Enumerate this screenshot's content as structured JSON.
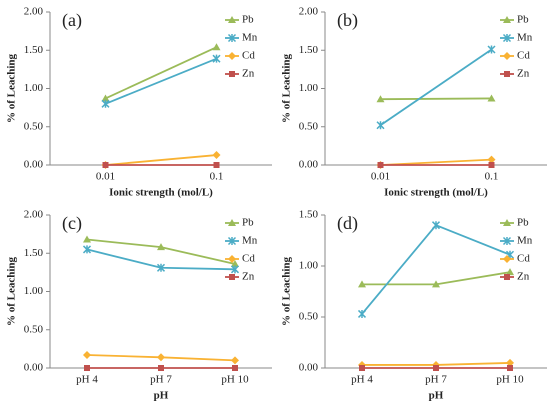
{
  "chart_data": [
    {
      "type": "line",
      "label": "(a)",
      "xlabel": "Ionic strength (mol/L)",
      "ylabel": "% of Leaching",
      "categories": [
        "0.01",
        "0.1"
      ],
      "series": [
        {
          "name": "Pb",
          "color": "#9bbb59",
          "marker": "triangle",
          "values": [
            0.87,
            1.54
          ]
        },
        {
          "name": "Mn",
          "color": "#4bacc6",
          "marker": "star",
          "values": [
            0.8,
            1.39
          ]
        },
        {
          "name": "Cd",
          "color": "#f9b233",
          "marker": "diamond",
          "values": [
            0.0,
            0.13
          ]
        },
        {
          "name": "Zn",
          "color": "#c0504d",
          "marker": "square",
          "values": [
            0.0,
            0.0
          ]
        }
      ],
      "ylim": [
        0,
        2
      ],
      "yticks": [
        {
          "value": 0,
          "label": "0.00"
        },
        {
          "value": 0.5,
          "label": "0.50"
        },
        {
          "value": 1,
          "label": "1.00"
        },
        {
          "value": 1.5,
          "label": "1.50"
        },
        {
          "value": 2,
          "label": "2.00"
        }
      ]
    },
    {
      "type": "line",
      "label": "(b)",
      "xlabel": "Ionic strength (mol/L)",
      "ylabel": "% of Leaching",
      "categories": [
        "0.01",
        "0.1"
      ],
      "series": [
        {
          "name": "Pb",
          "color": "#9bbb59",
          "marker": "triangle",
          "values": [
            0.86,
            0.87
          ]
        },
        {
          "name": "Mn",
          "color": "#4bacc6",
          "marker": "star",
          "values": [
            0.52,
            1.51
          ]
        },
        {
          "name": "Cd",
          "color": "#f9b233",
          "marker": "diamond",
          "values": [
            0.0,
            0.07
          ]
        },
        {
          "name": "Zn",
          "color": "#c0504d",
          "marker": "square",
          "values": [
            0.0,
            0.0
          ]
        }
      ],
      "ylim": [
        0,
        2
      ],
      "yticks": [
        {
          "value": 0,
          "label": "0.00"
        },
        {
          "value": 0.5,
          "label": "0.50"
        },
        {
          "value": 1,
          "label": "1.00"
        },
        {
          "value": 1.5,
          "label": "1.50"
        },
        {
          "value": 2,
          "label": "2.00"
        }
      ]
    },
    {
      "type": "line",
      "label": "(c)",
      "xlabel": "pH",
      "ylabel": "% of Leaching",
      "categories": [
        "pH 4",
        "pH 7",
        "pH 10"
      ],
      "series": [
        {
          "name": "Pb",
          "color": "#9bbb59",
          "marker": "triangle",
          "values": [
            1.68,
            1.58,
            1.36
          ]
        },
        {
          "name": "Mn",
          "color": "#4bacc6",
          "marker": "star",
          "values": [
            1.55,
            1.31,
            1.29
          ]
        },
        {
          "name": "Cd",
          "color": "#f9b233",
          "marker": "diamond",
          "values": [
            0.17,
            0.14,
            0.1
          ]
        },
        {
          "name": "Zn",
          "color": "#c0504d",
          "marker": "square",
          "values": [
            0.0,
            0.0,
            0.0
          ]
        }
      ],
      "ylim": [
        0,
        2
      ],
      "yticks": [
        {
          "value": 0,
          "label": "0.00"
        },
        {
          "value": 0.5,
          "label": "0.50"
        },
        {
          "value": 1,
          "label": "1.00"
        },
        {
          "value": 1.5,
          "label": "1.50"
        },
        {
          "value": 2,
          "label": "2.00"
        }
      ]
    },
    {
      "type": "line",
      "label": "(d)",
      "xlabel": "pH",
      "ylabel": "% of Leaching",
      "categories": [
        "pH 4",
        "pH 7",
        "pH 10"
      ],
      "series": [
        {
          "name": "Pb",
          "color": "#9bbb59",
          "marker": "triangle",
          "values": [
            0.82,
            0.82,
            0.94
          ]
        },
        {
          "name": "Mn",
          "color": "#4bacc6",
          "marker": "star",
          "values": [
            0.53,
            1.4,
            1.11
          ]
        },
        {
          "name": "Cd",
          "color": "#f9b233",
          "marker": "diamond",
          "values": [
            0.03,
            0.03,
            0.05
          ]
        },
        {
          "name": "Zn",
          "color": "#c0504d",
          "marker": "square",
          "values": [
            0.0,
            0.0,
            0.0
          ]
        }
      ],
      "ylim": [
        0,
        1.5
      ],
      "yticks": [
        {
          "value": 0,
          "label": "0.00"
        },
        {
          "value": 0.5,
          "label": "0.50"
        },
        {
          "value": 1,
          "label": "1.00"
        },
        {
          "value": 1.5,
          "label": "1.50"
        }
      ]
    }
  ]
}
